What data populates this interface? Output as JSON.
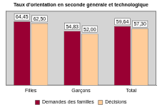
{
  "chart_data": {
    "type": "bar",
    "title": "Taux d'orientation en seconde générale et technologique",
    "categories": [
      "Filles",
      "Garçons",
      "Total"
    ],
    "series": [
      {
        "name": "Demandes des familles",
        "color": "#990033",
        "values": [
          64.45,
          54.83,
          59.64
        ],
        "value_labels": [
          "64,45",
          "54,83",
          "59,64"
        ]
      },
      {
        "name": "Décisions",
        "color": "#ffcc99",
        "values": [
          62.5,
          52.0,
          57.3
        ],
        "value_labels": [
          "62,50",
          "52,00",
          "57,30"
        ]
      }
    ],
    "ylim": [
      0,
      75
    ],
    "grid": false,
    "legend": "bottom",
    "data_labels": true,
    "tick_labels": "x"
  }
}
